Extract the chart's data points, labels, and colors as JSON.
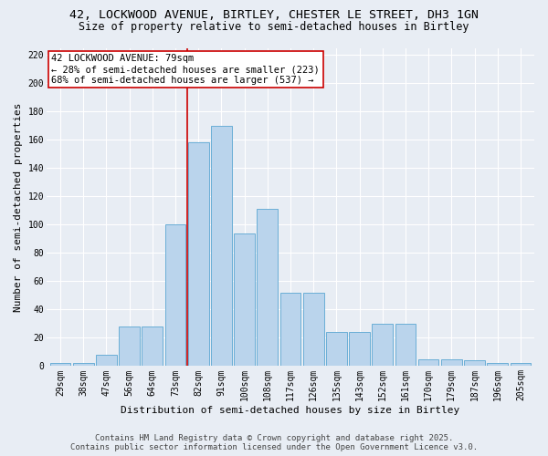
{
  "title_line1": "42, LOCKWOOD AVENUE, BIRTLEY, CHESTER LE STREET, DH3 1GN",
  "title_line2": "Size of property relative to semi-detached houses in Birtley",
  "xlabel": "Distribution of semi-detached houses by size in Birtley",
  "ylabel": "Number of semi-detached properties",
  "categories": [
    "29sqm",
    "38sqm",
    "47sqm",
    "56sqm",
    "64sqm",
    "73sqm",
    "82sqm",
    "91sqm",
    "100sqm",
    "108sqm",
    "117sqm",
    "126sqm",
    "135sqm",
    "143sqm",
    "152sqm",
    "161sqm",
    "170sqm",
    "179sqm",
    "187sqm",
    "196sqm",
    "205sqm"
  ],
  "values": [
    2,
    2,
    8,
    28,
    28,
    100,
    158,
    170,
    94,
    111,
    52,
    52,
    24,
    24,
    30,
    30,
    5,
    5,
    4,
    2,
    2
  ],
  "bar_color": "#bad4ec",
  "bar_edge_color": "#6aaed6",
  "vline_index": 6,
  "vline_color": "#cc0000",
  "annotation_text": "42 LOCKWOOD AVENUE: 79sqm\n← 28% of semi-detached houses are smaller (223)\n68% of semi-detached houses are larger (537) →",
  "annotation_box_facecolor": "#ffffff",
  "annotation_box_edgecolor": "#cc0000",
  "ylim": [
    0,
    225
  ],
  "yticks": [
    0,
    20,
    40,
    60,
    80,
    100,
    120,
    140,
    160,
    180,
    200,
    220
  ],
  "background_color": "#e8edf4",
  "grid_color": "#ffffff",
  "footer_line1": "Contains HM Land Registry data © Crown copyright and database right 2025.",
  "footer_line2": "Contains public sector information licensed under the Open Government Licence v3.0.",
  "title_fontsize": 9.5,
  "subtitle_fontsize": 8.5,
  "ylabel_fontsize": 8,
  "xlabel_fontsize": 8,
  "tick_fontsize": 7,
  "annotation_fontsize": 7.5,
  "footer_fontsize": 6.5
}
